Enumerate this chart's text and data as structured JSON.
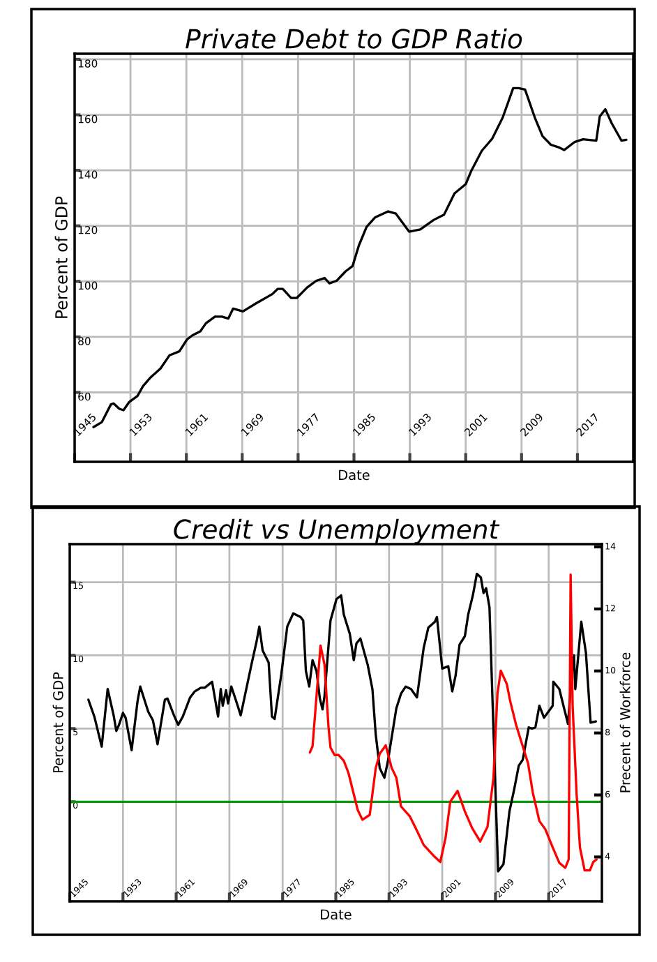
{
  "chart_data": [
    {
      "type": "line",
      "title": "Private Debt to GDP Ratio",
      "xlabel": "Date",
      "ylabel": "Percent of GDP",
      "grid": true,
      "xlim": [
        1945,
        2025
      ],
      "xticks": [
        1945,
        1953,
        1961,
        1969,
        1977,
        1985,
        1993,
        2001,
        2009,
        2017
      ],
      "ylim": [
        35,
        182
      ],
      "yticks": [
        60,
        80,
        100,
        120,
        140,
        160,
        180
      ],
      "series": [
        {
          "color": "#000000",
          "x": [
            1947.7,
            1948.9,
            1950.2,
            1950.6,
            1951.4,
            1952.0,
            1952.8,
            1954.0,
            1954.8,
            1955.8,
            1957.3,
            1958.6,
            1960.0,
            1961.1,
            1961.9,
            1963.0,
            1963.8,
            1965.1,
            1966.1,
            1967.0,
            1967.7,
            1969.1,
            1971.0,
            1973.3,
            1974.1,
            1974.8,
            1976.0,
            1976.8,
            1978.3,
            1979.6,
            1980.8,
            1981.5,
            1982.5,
            1983.8,
            1984.8,
            1985.7,
            1986.8,
            1988.0,
            1989.9,
            1991.0,
            1992.9,
            1994.5,
            1996.4,
            1997.9,
            1999.4,
            2001.0,
            2001.8,
            2003.3,
            2004.8,
            2006.3,
            2007.8,
            2008.6,
            2009.5,
            2010.9,
            2012.0,
            2013.2,
            2014.3,
            2015.1,
            2016.6,
            2017.8,
            2019.7,
            2020.2,
            2021.0,
            2021.9,
            2023.3,
            2024.0
          ],
          "values": [
            47.5,
            49.3,
            55.7,
            56,
            54.1,
            53.6,
            56.5,
            58.7,
            62.3,
            65.2,
            68.6,
            73.4,
            74.8,
            79.1,
            80.6,
            82,
            84.9,
            87.3,
            87.3,
            86.6,
            90.2,
            89.2,
            92.1,
            95.4,
            97.3,
            97.3,
            94,
            94,
            97.8,
            100.2,
            101.2,
            99.3,
            100.2,
            103.6,
            105.5,
            112.9,
            119.6,
            123,
            125.2,
            124.4,
            117.9,
            118.7,
            122.1,
            124,
            131.7,
            135,
            139.8,
            147,
            151.4,
            159,
            169.6,
            169.6,
            169.1,
            159,
            152.3,
            149.2,
            148.3,
            147.3,
            150.2,
            151.2,
            150.7,
            159.4,
            162,
            157,
            150.7,
            151
          ]
        }
      ]
    },
    {
      "type": "line",
      "title": "Credit vs Unemployment",
      "xlabel": "Date",
      "ylabel": "Percent of GDP",
      "y2label": "Precent of Workforce",
      "grid": true,
      "xlim": [
        1945,
        2025
      ],
      "xticks": [
        1945,
        1953,
        1961,
        1969,
        1977,
        1985,
        1993,
        2001,
        2009,
        2017
      ],
      "ylim": [
        -6.8,
        17.6
      ],
      "yticks": [
        0,
        5,
        10,
        15
      ],
      "y2lim": [
        2.57,
        14.09
      ],
      "y2ticks": [
        4,
        6,
        8,
        10,
        12,
        14
      ],
      "ref_lines": [
        {
          "axis": "y",
          "value": 0,
          "color": "#0a990a"
        }
      ],
      "series": [
        {
          "color": "#000000",
          "x": [
            1947.8,
            1948.7,
            1949.8,
            1950.7,
            1951.6,
            1952.0,
            1952.4,
            1953.0,
            1953.4,
            1954.3,
            1955.2,
            1955.6,
            1956.8,
            1957.5,
            1958.2,
            1959.3,
            1959.7,
            1960.6,
            1961.3,
            1962.0,
            1963.1,
            1963.8,
            1964.7,
            1965.3,
            1966.4,
            1967.3,
            1967.7,
            1968.0,
            1968.5,
            1968.8,
            1969.3,
            1970.3,
            1970.7,
            1972.3,
            1973.1,
            1973.5,
            1974.0,
            1974.9,
            1975.4,
            1975.8,
            1976.8,
            1977.7,
            1978.6,
            1979.7,
            1980.1,
            1980.5,
            1981.0,
            1981.5,
            1982.1,
            1982.6,
            1983.0,
            1983.3,
            1984.2,
            1985.1,
            1985.8,
            1986.2,
            1987.1,
            1987.7,
            1988.1,
            1988.7,
            1989.8,
            1990.5,
            1991.0,
            1991.6,
            1992.3,
            1992.8,
            1994.1,
            1994.8,
            1995.5,
            1996.3,
            1997.2,
            1998.2,
            1998.9,
            1999.9,
            2000.2,
            2001.0,
            2001.9,
            2002.5,
            2003.0,
            2003.6,
            2004.4,
            2004.9,
            2005.6,
            2006.2,
            2006.8,
            2007.2,
            2007.6,
            2008.1,
            2008.7,
            2009.4,
            2010.2,
            2011.1,
            2011.8,
            2012.5,
            2013.1,
            2014.0,
            2014.5,
            2015.0,
            2015.6,
            2016.3,
            2017.6,
            2017.7,
            2018.6,
            2019.4,
            2019.9,
            2020.5,
            2020.8,
            2021.0,
            2021.9,
            2022.6,
            2023.3,
            2024.1
          ],
          "values": [
            6.97,
            5.82,
            3.77,
            7.7,
            5.9,
            4.84,
            5.25,
            6.07,
            5.74,
            3.52,
            6.89,
            7.87,
            6.15,
            5.57,
            3.93,
            6.97,
            7.05,
            5.98,
            5.25,
            5.82,
            7.13,
            7.54,
            7.79,
            7.79,
            8.2,
            5.82,
            7.7,
            6.56,
            7.62,
            6.72,
            7.87,
            6.48,
            5.9,
            9.34,
            10.98,
            11.97,
            10.33,
            9.51,
            5.82,
            5.66,
            8.69,
            11.97,
            12.87,
            12.62,
            12.38,
            8.93,
            7.87,
            9.67,
            8.93,
            7.05,
            6.31,
            7.21,
            12.38,
            13.85,
            14.1,
            12.79,
            11.48,
            9.67,
            10.82,
            11.15,
            9.34,
            7.7,
            4.59,
            2.3,
            1.64,
            2.7,
            6.39,
            7.38,
            7.87,
            7.7,
            7.13,
            10.49,
            11.89,
            12.3,
            12.62,
            9.1,
            9.26,
            7.54,
            8.61,
            10.74,
            11.31,
            12.79,
            14.1,
            15.57,
            15.33,
            14.26,
            14.59,
            13.28,
            4.92,
            -4.75,
            -4.26,
            -0.66,
            0.82,
            2.46,
            2.87,
            5.08,
            5.0,
            5.08,
            6.56,
            5.74,
            6.56,
            8.2,
            7.7,
            6.23,
            5.33,
            8.85,
            10.0,
            7.7,
            12.3,
            10.16,
            5.41,
            5.49
          ]
        },
        {
          "color": "#ff0000",
          "axis": "y2",
          "x": [
            1981.1,
            1981.5,
            1982.7,
            1983.3,
            1983.9,
            1984.2,
            1984.8,
            1985.4,
            1986.2,
            1986.9,
            1987.8,
            1988.3,
            1989.0,
            1990.1,
            1991.0,
            1991.6,
            1992.5,
            1993.4,
            1994.1,
            1994.8,
            1996.1,
            1997.0,
            1997.7,
            1998.2,
            1999.7,
            2000.7,
            2001.5,
            2002.2,
            2003.3,
            2004.4,
            2005.5,
            2006.7,
            2007.8,
            2008.7,
            2009.3,
            2009.8,
            2010.7,
            2011.2,
            2012.1,
            2013.0,
            2013.9,
            2014.6,
            2015.6,
            2016.5,
            2017.6,
            2018.6,
            2019.5,
            2020.0,
            2020.3,
            2020.6,
            2021.2,
            2021.7,
            2022.4,
            2023.2,
            2023.7,
            2024.2
          ],
          "values": [
            7.37,
            7.57,
            10.82,
            10.2,
            8.19,
            7.53,
            7.29,
            7.29,
            7.1,
            6.71,
            5.94,
            5.51,
            5.2,
            5.36,
            6.87,
            7.33,
            7.6,
            6.87,
            6.56,
            5.63,
            5.32,
            4.93,
            4.62,
            4.39,
            4.04,
            3.84,
            4.62,
            5.78,
            6.13,
            5.47,
            4.93,
            4.5,
            4.97,
            6.56,
            9.27,
            10.01,
            9.58,
            9.04,
            8.26,
            7.64,
            7.02,
            6.09,
            5.16,
            4.89,
            4.31,
            3.81,
            3.65,
            3.92,
            13.11,
            8.88,
            6.02,
            4.31,
            3.57,
            3.57,
            3.84,
            3.92
          ]
        }
      ]
    }
  ]
}
